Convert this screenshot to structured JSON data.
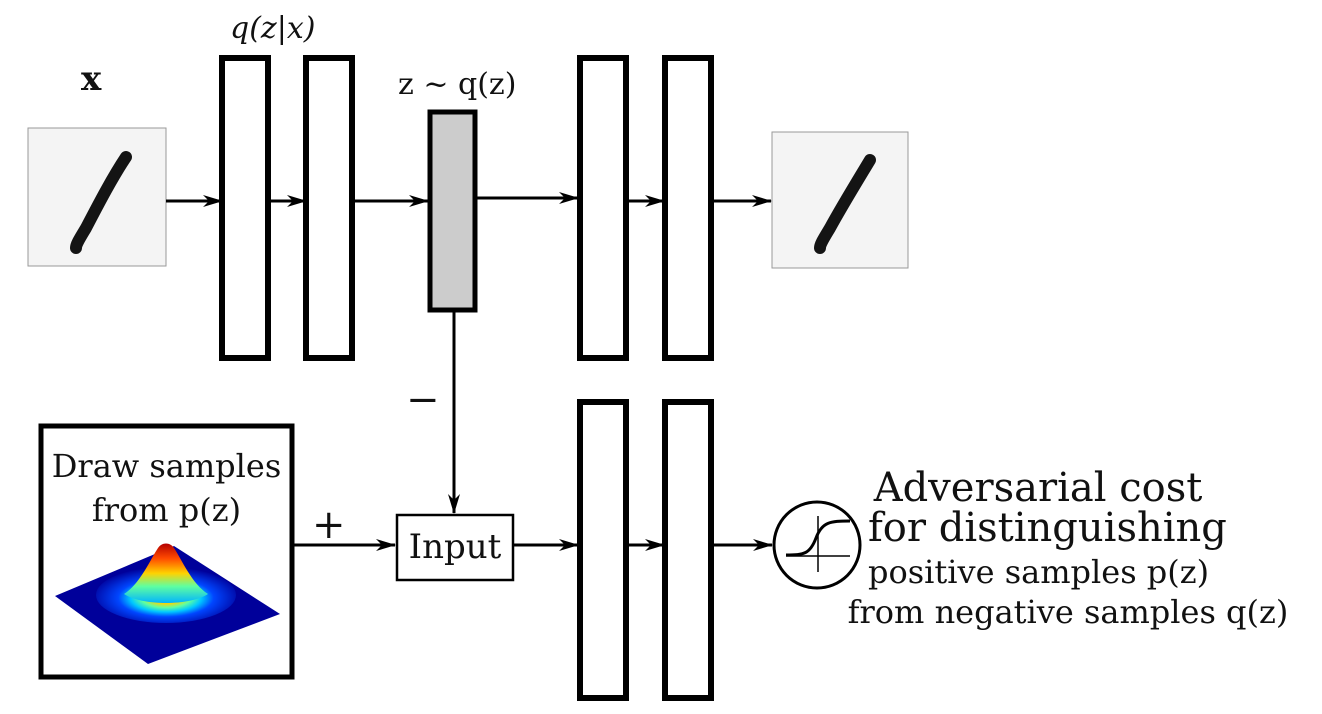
{
  "labels": {
    "x_input": "x",
    "encoder_q": "q(z|x)",
    "sampled_z": "z ~ q(z)",
    "negative_sign": "−",
    "positive_sign": "+",
    "input_box": "Input",
    "prior_box_line1": "Draw samples",
    "prior_box_line2": "from p(z)",
    "adversarial_line1": "Adversarial cost",
    "adversarial_line2": "for distinguishing",
    "adversarial_line3": "positive samples p(z)",
    "adversarial_line4": "from negative samples q(z)"
  },
  "colors": {
    "stroke": "#000000",
    "z_fill": "#cccccc",
    "image_bg": "#f4f4f4"
  },
  "icons": {
    "sigmoid": "sigmoid-icon",
    "gaussian": "gaussian-surface-icon",
    "digit": "digit-one-image"
  }
}
